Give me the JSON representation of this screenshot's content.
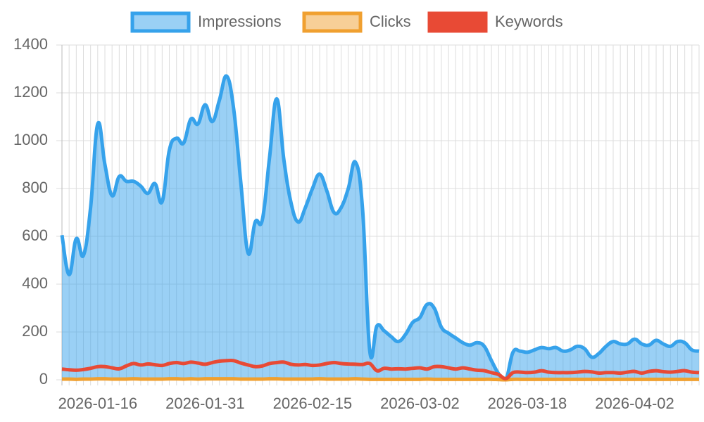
{
  "chart_data": {
    "type": "line",
    "categories": [
      null,
      null,
      null,
      null,
      null,
      "2026-01-16",
      null,
      null,
      null,
      null,
      null,
      null,
      null,
      null,
      null,
      null,
      null,
      null,
      null,
      null,
      "2026-01-31",
      null,
      null,
      null,
      null,
      null,
      null,
      null,
      null,
      null,
      null,
      null,
      null,
      null,
      null,
      "2026-02-15",
      null,
      null,
      null,
      null,
      null,
      null,
      null,
      null,
      null,
      null,
      null,
      null,
      null,
      null,
      "2026-03-02",
      null,
      null,
      null,
      null,
      null,
      null,
      null,
      null,
      null,
      null,
      null,
      null,
      null,
      null,
      "2026-03-18",
      null,
      null,
      null,
      null,
      null,
      null,
      null,
      null,
      null,
      null,
      null,
      null,
      null,
      null,
      "2026-04-02",
      null,
      null,
      null,
      null,
      null,
      null,
      null,
      null,
      null
    ],
    "series": [
      {
        "name": "Impressions",
        "color": "#36a2eb",
        "fill": "rgba(54,162,235,0.5)",
        "values": [
          605,
          440,
          590,
          520,
          720,
          1070,
          900,
          770,
          850,
          830,
          830,
          810,
          780,
          820,
          745,
          960,
          1010,
          990,
          1090,
          1070,
          1150,
          1080,
          1170,
          1270,
          1130,
          820,
          530,
          660,
          670,
          930,
          1175,
          920,
          740,
          660,
          720,
          800,
          860,
          790,
          700,
          720,
          800,
          910,
          710,
          120,
          225,
          205,
          180,
          160,
          190,
          240,
          260,
          315,
          300,
          220,
          195,
          175,
          155,
          145,
          155,
          140,
          80,
          25,
          0,
          115,
          120,
          115,
          125,
          135,
          130,
          135,
          120,
          125,
          140,
          130,
          95,
          110,
          140,
          160,
          150,
          150,
          170,
          150,
          145,
          165,
          150,
          140,
          160,
          155,
          125,
          120
        ]
      },
      {
        "name": "Clicks",
        "color": "#f0a030",
        "fill": "rgba(240,160,48,0.5)",
        "values": [
          3,
          3,
          2,
          3,
          3,
          4,
          4,
          3,
          3,
          3,
          4,
          3,
          3,
          3,
          3,
          4,
          4,
          3,
          4,
          3,
          4,
          4,
          4,
          4,
          4,
          3,
          3,
          3,
          3,
          4,
          4,
          3,
          3,
          3,
          3,
          3,
          4,
          3,
          3,
          3,
          3,
          4,
          3,
          2,
          2,
          2,
          2,
          2,
          2,
          2,
          2,
          3,
          2,
          2,
          2,
          2,
          2,
          2,
          2,
          2,
          2,
          1,
          0,
          2,
          2,
          2,
          2,
          2,
          2,
          2,
          2,
          2,
          2,
          2,
          2,
          2,
          2,
          2,
          2,
          2,
          2,
          2,
          2,
          2,
          2,
          2,
          2,
          2,
          2,
          2
        ]
      },
      {
        "name": "Keywords",
        "color": "#e84a35",
        "fill": "#e84a35",
        "values": [
          45,
          42,
          40,
          43,
          48,
          55,
          55,
          50,
          46,
          58,
          68,
          62,
          66,
          63,
          60,
          68,
          72,
          68,
          74,
          70,
          65,
          72,
          78,
          80,
          80,
          70,
          62,
          55,
          58,
          68,
          72,
          74,
          65,
          62,
          64,
          60,
          62,
          68,
          72,
          68,
          66,
          65,
          64,
          68,
          38,
          48,
          45,
          46,
          45,
          48,
          50,
          45,
          55,
          55,
          50,
          45,
          50,
          45,
          40,
          38,
          30,
          22,
          5,
          30,
          32,
          30,
          32,
          38,
          32,
          30,
          30,
          30,
          32,
          35,
          33,
          28,
          30,
          30,
          28,
          32,
          35,
          28,
          35,
          38,
          34,
          32,
          35,
          38,
          32,
          30
        ]
      }
    ],
    "ylim": [
      0,
      1400
    ],
    "yticks": [
      0,
      200,
      400,
      600,
      800,
      1000,
      1200,
      1400
    ],
    "grid": true,
    "legend": "top"
  }
}
